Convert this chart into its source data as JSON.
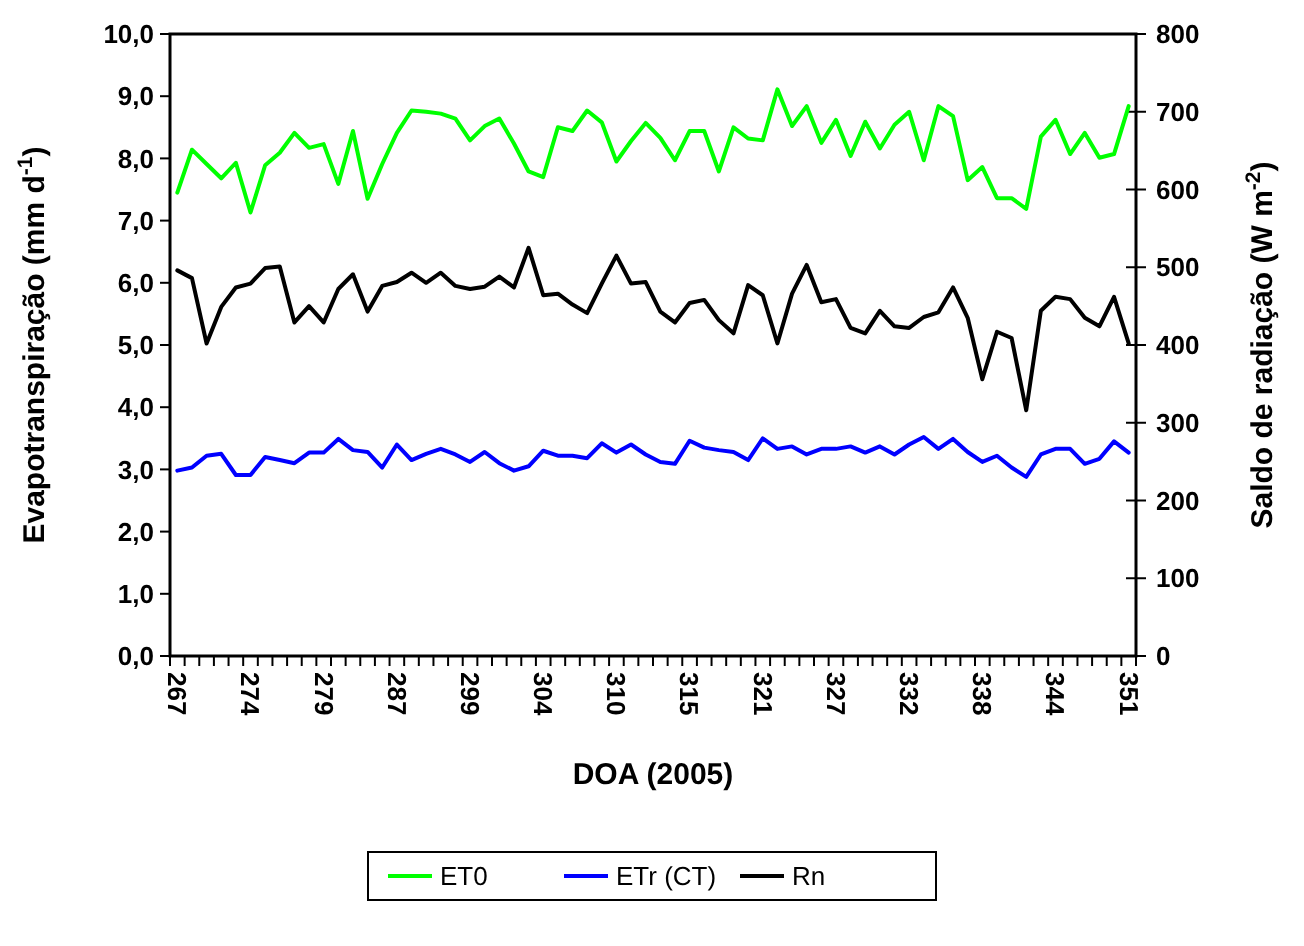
{
  "chart_data": {
    "type": "line",
    "xlabel": "DOA (2005)",
    "ylabel": "Evapotranspiração (mm d$^{-1}$)",
    "y2label": "Saldo de radiação (W m$^{-2}$)",
    "categories": [
      "267",
      null,
      null,
      null,
      null,
      "274",
      null,
      null,
      null,
      null,
      "279",
      null,
      null,
      null,
      null,
      "287",
      null,
      null,
      null,
      null,
      "299",
      null,
      null,
      null,
      null,
      "304",
      null,
      null,
      null,
      null,
      "310",
      null,
      null,
      null,
      null,
      "315",
      null,
      null,
      null,
      null,
      "321",
      null,
      null,
      null,
      null,
      "327",
      null,
      null,
      null,
      null,
      "332",
      null,
      null,
      null,
      null,
      "338",
      null,
      null,
      null,
      null,
      "344",
      null,
      null,
      null,
      null,
      "351"
    ],
    "ylim": [
      0,
      10
    ],
    "yticks": [
      {
        "value": 0,
        "label": "0,0"
      },
      {
        "value": 1,
        "label": "1,0"
      },
      {
        "value": 2,
        "label": "2,0"
      },
      {
        "value": 3,
        "label": "3,0"
      },
      {
        "value": 4,
        "label": "4,0"
      },
      {
        "value": 5,
        "label": "5,0"
      },
      {
        "value": 6,
        "label": "6,0"
      },
      {
        "value": 7,
        "label": "7,0"
      },
      {
        "value": 8,
        "label": "8,0"
      },
      {
        "value": 9,
        "label": "9,0"
      },
      {
        "value": 10,
        "label": "10,0"
      }
    ],
    "y2lim": [
      0,
      800
    ],
    "y2ticks": [
      0,
      100,
      200,
      300,
      400,
      500,
      600,
      700,
      800
    ],
    "grid": false,
    "legend": "bottom",
    "marker": "none",
    "line_style": "solid",
    "series": [
      {
        "name": "ET0",
        "color": "#00ff00",
        "values": [
          7.45,
          8.14,
          7.91,
          7.68,
          7.93,
          7.13,
          7.89,
          8.09,
          8.41,
          8.17,
          8.23,
          7.59,
          8.44,
          7.35,
          7.91,
          8.41,
          8.77,
          8.75,
          8.72,
          8.64,
          8.29,
          8.52,
          8.64,
          8.24,
          7.79,
          7.7,
          8.5,
          8.44,
          8.77,
          8.58,
          7.95,
          8.28,
          8.57,
          8.33,
          7.97,
          8.44,
          8.44,
          7.79,
          8.5,
          8.32,
          8.29,
          9.11,
          8.52,
          8.84,
          8.25,
          8.62,
          8.04,
          8.59,
          8.16,
          8.54,
          8.75,
          7.97,
          8.84,
          8.68,
          7.65,
          7.86,
          7.36,
          7.36,
          7.19,
          8.35,
          8.62,
          8.07,
          8.41,
          8.01,
          8.07,
          8.84
        ]
      },
      {
        "name": "ETr (CT)",
        "color": "#0000ff",
        "values": [
          2.98,
          3.03,
          3.22,
          3.25,
          2.91,
          2.91,
          3.2,
          3.15,
          3.1,
          3.27,
          3.27,
          3.49,
          3.31,
          3.28,
          3.03,
          3.4,
          3.15,
          3.25,
          3.33,
          3.24,
          3.12,
          3.28,
          3.1,
          2.98,
          3.05,
          3.3,
          3.22,
          3.22,
          3.18,
          3.42,
          3.27,
          3.4,
          3.24,
          3.12,
          3.09,
          3.46,
          3.35,
          3.31,
          3.28,
          3.15,
          3.5,
          3.33,
          3.37,
          3.24,
          3.33,
          3.33,
          3.37,
          3.27,
          3.37,
          3.24,
          3.4,
          3.52,
          3.33,
          3.49,
          3.28,
          3.12,
          3.22,
          3.03,
          2.88,
          3.24,
          3.33,
          3.33,
          3.09,
          3.17,
          3.45,
          3.27
        ]
      },
      {
        "name": "Rn",
        "color": "#000000",
        "axis": "y2",
        "values": [
          496,
          486,
          402,
          449,
          474,
          479,
          499,
          501,
          429,
          450,
          429,
          472,
          491,
          443,
          476,
          481,
          493,
          480,
          493,
          476,
          472,
          475,
          488,
          474,
          525,
          464,
          466,
          452,
          441,
          479,
          515,
          479,
          481,
          443,
          429,
          454,
          458,
          432,
          415,
          477,
          464,
          402,
          466,
          503,
          455,
          459,
          422,
          415,
          444,
          424,
          422,
          436,
          442,
          474,
          435,
          356,
          417,
          409,
          316,
          444,
          462,
          459,
          435,
          424,
          462,
          402
        ]
      }
    ]
  }
}
